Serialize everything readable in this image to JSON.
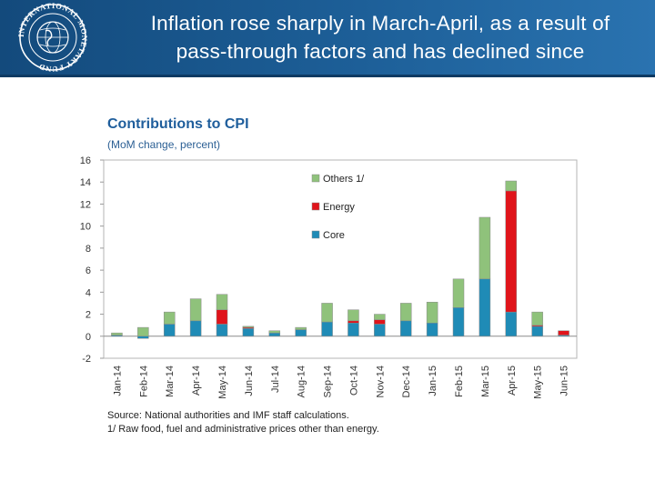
{
  "header": {
    "title_line1": "Inflation rose sharply in March-April, as a result of",
    "title_line2": "pass-through factors and has declined since",
    "logo_text": "INTERNATIONAL MONETARY FUND"
  },
  "colors": {
    "header_bg": "#1d5f98",
    "others": "#8fc27b",
    "energy": "#e0141b",
    "core": "#1f8bb6"
  },
  "chart_data": {
    "type": "bar",
    "stacked": true,
    "title": "Contributions to CPI",
    "subtitle": "(MoM change, percent)",
    "categories": [
      "Jan-14",
      "Feb-14",
      "Mar-14",
      "Apr-14",
      "May-14",
      "Jun-14",
      "Jul-14",
      "Aug-14",
      "Sep-14",
      "Oct-14",
      "Nov-14",
      "Dec-14",
      "Jan-15",
      "Feb-15",
      "Mar-15",
      "Apr-15",
      "May-15",
      "Jun-15"
    ],
    "series": [
      {
        "name": "Core",
        "color": "#1f8bb6",
        "values": [
          0.1,
          -0.2,
          1.1,
          1.4,
          1.1,
          0.7,
          0.3,
          0.6,
          1.3,
          1.2,
          1.1,
          1.4,
          1.2,
          2.6,
          5.2,
          2.2,
          0.9,
          0.1
        ]
      },
      {
        "name": "Energy",
        "color": "#e0141b",
        "values": [
          0.0,
          0.0,
          0.0,
          0.0,
          1.3,
          0.1,
          0.0,
          0.0,
          0.0,
          0.2,
          0.4,
          0.0,
          0.0,
          0.0,
          0.0,
          11.0,
          0.1,
          0.4
        ]
      },
      {
        "name": "Others 1/",
        "color": "#8fc27b",
        "values": [
          0.2,
          0.8,
          1.1,
          2.0,
          1.4,
          0.1,
          0.2,
          0.2,
          1.7,
          1.0,
          0.5,
          1.6,
          1.9,
          2.6,
          5.6,
          0.9,
          1.2,
          0.0
        ]
      }
    ],
    "legend": [
      "Others 1/",
      "Energy",
      "Core"
    ],
    "legend_position": "top-right",
    "ylim": [
      -2,
      16
    ],
    "yticks": [
      16,
      14,
      12,
      10,
      8,
      6,
      4,
      2,
      0,
      -2
    ],
    "grid": false
  },
  "notes": {
    "source": "Source: National authorities and IMF staff calculations.",
    "footnote": "1/ Raw food, fuel and administrative prices other than energy."
  }
}
